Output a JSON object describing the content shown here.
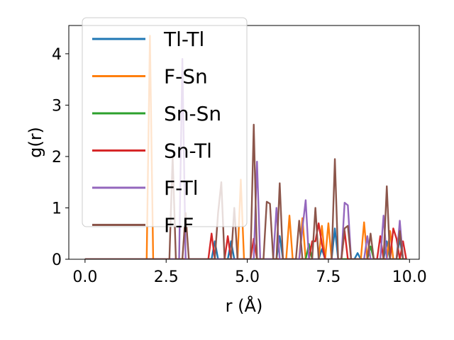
{
  "chart_data": {
    "type": "line",
    "xlabel": "r (Å)",
    "ylabel": "g(r)",
    "xlim": [
      -0.5,
      10.3
    ],
    "ylim": [
      0,
      4.55
    ],
    "xticks": [
      0.0,
      2.5,
      5.0,
      7.5,
      10.0
    ],
    "xtick_labels": [
      "0.0",
      "2.5",
      "5.0",
      "7.5",
      "10.0"
    ],
    "yticks": [
      0,
      1,
      2,
      3,
      4
    ],
    "ytick_labels": [
      "0",
      "1",
      "2",
      "3",
      "4"
    ],
    "legend_position": "upper-left",
    "grid": false,
    "series": [
      {
        "name": "Tl-Tl",
        "color": "#1f77b4",
        "points": [
          [
            0,
            0
          ],
          [
            3.9,
            0
          ],
          [
            4.0,
            0.35
          ],
          [
            4.1,
            0
          ],
          [
            4.4,
            0
          ],
          [
            4.5,
            0.35
          ],
          [
            4.6,
            0
          ],
          [
            5.9,
            0
          ],
          [
            6.0,
            0.45
          ],
          [
            6.1,
            0
          ],
          [
            7.2,
            0
          ],
          [
            7.3,
            0.2
          ],
          [
            7.4,
            0
          ],
          [
            7.6,
            0
          ],
          [
            7.7,
            0.6
          ],
          [
            7.8,
            0
          ],
          [
            8.3,
            0
          ],
          [
            8.4,
            0.12
          ],
          [
            8.5,
            0
          ],
          [
            9.2,
            0
          ],
          [
            9.3,
            0.35
          ],
          [
            9.4,
            0
          ],
          [
            9.6,
            0
          ],
          [
            9.7,
            0.4
          ],
          [
            9.8,
            0
          ],
          [
            9.9,
            0
          ]
        ]
      },
      {
        "name": "F-Sn",
        "color": "#ff7f0e",
        "points": [
          [
            0,
            0
          ],
          [
            1.9,
            0
          ],
          [
            2.0,
            4.35
          ],
          [
            2.1,
            0
          ],
          [
            4.7,
            0
          ],
          [
            4.8,
            1.55
          ],
          [
            4.9,
            0
          ],
          [
            6.2,
            0
          ],
          [
            6.3,
            0.85
          ],
          [
            6.4,
            0
          ],
          [
            6.6,
            0
          ],
          [
            6.7,
            0.8
          ],
          [
            6.8,
            0
          ],
          [
            7.2,
            0
          ],
          [
            7.3,
            0.65
          ],
          [
            7.4,
            0
          ],
          [
            7.5,
            0.7
          ],
          [
            7.6,
            0
          ],
          [
            8.5,
            0
          ],
          [
            8.6,
            0.72
          ],
          [
            8.7,
            0
          ],
          [
            9.3,
            0
          ],
          [
            9.4,
            0.55
          ],
          [
            9.5,
            0
          ],
          [
            9.9,
            0
          ]
        ]
      },
      {
        "name": "Sn-Sn",
        "color": "#2ca02c",
        "points": [
          [
            0,
            0
          ],
          [
            6.8,
            0
          ],
          [
            6.9,
            0.3
          ],
          [
            7.0,
            0
          ],
          [
            8.7,
            0
          ],
          [
            8.8,
            0.25
          ],
          [
            8.9,
            0
          ],
          [
            9.9,
            0
          ]
        ]
      },
      {
        "name": "Sn-Tl",
        "color": "#d62728",
        "points": [
          [
            0,
            0
          ],
          [
            3.8,
            0
          ],
          [
            3.9,
            0.5
          ],
          [
            4.0,
            0
          ],
          [
            4.3,
            0
          ],
          [
            4.4,
            0.45
          ],
          [
            4.5,
            0
          ],
          [
            5.1,
            0
          ],
          [
            5.2,
            0.4
          ],
          [
            5.3,
            0
          ],
          [
            6.9,
            0
          ],
          [
            7.0,
            0.35
          ],
          [
            7.1,
            0.35
          ],
          [
            7.2,
            0.7
          ],
          [
            7.3,
            0.3
          ],
          [
            7.4,
            0
          ],
          [
            7.9,
            0
          ],
          [
            8.0,
            0.55
          ],
          [
            8.1,
            0
          ],
          [
            9.0,
            0
          ],
          [
            9.1,
            0.45
          ],
          [
            9.2,
            0
          ],
          [
            9.4,
            0
          ],
          [
            9.5,
            0.6
          ],
          [
            9.6,
            0.4
          ],
          [
            9.7,
            0
          ],
          [
            9.8,
            0.35
          ],
          [
            9.9,
            0
          ]
        ]
      },
      {
        "name": "F-Tl",
        "color": "#9467bd",
        "points": [
          [
            0,
            0
          ],
          [
            2.9,
            0
          ],
          [
            3.0,
            3.9
          ],
          [
            3.1,
            0
          ],
          [
            5.2,
            0
          ],
          [
            5.3,
            1.9
          ],
          [
            5.4,
            0
          ],
          [
            5.8,
            0
          ],
          [
            5.9,
            1.0
          ],
          [
            6.0,
            0
          ],
          [
            6.6,
            0
          ],
          [
            6.7,
            0.6
          ],
          [
            6.8,
            1.15
          ],
          [
            6.9,
            0
          ],
          [
            7.9,
            0
          ],
          [
            8.0,
            1.1
          ],
          [
            8.1,
            1.05
          ],
          [
            8.2,
            0
          ],
          [
            8.6,
            0
          ],
          [
            8.7,
            0.45
          ],
          [
            8.8,
            0
          ],
          [
            9.1,
            0
          ],
          [
            9.2,
            0.85
          ],
          [
            9.3,
            0
          ],
          [
            9.6,
            0
          ],
          [
            9.7,
            0.75
          ],
          [
            9.8,
            0
          ],
          [
            9.9,
            0
          ]
        ]
      },
      {
        "name": "F-F",
        "color": "#8c564b",
        "points": [
          [
            0,
            0
          ],
          [
            2.6,
            0
          ],
          [
            2.7,
            2.0
          ],
          [
            2.8,
            0
          ],
          [
            3.0,
            0
          ],
          [
            3.1,
            0.9
          ],
          [
            3.2,
            0
          ],
          [
            4.0,
            0
          ],
          [
            4.1,
            0.9
          ],
          [
            4.2,
            1.5
          ],
          [
            4.3,
            0
          ],
          [
            4.5,
            0
          ],
          [
            4.6,
            1.0
          ],
          [
            4.7,
            0
          ],
          [
            5.1,
            0
          ],
          [
            5.2,
            2.62
          ],
          [
            5.3,
            0
          ],
          [
            5.5,
            0
          ],
          [
            5.6,
            1.12
          ],
          [
            5.7,
            1.08
          ],
          [
            5.8,
            0
          ],
          [
            5.9,
            0
          ],
          [
            6.0,
            1.48
          ],
          [
            6.1,
            0
          ],
          [
            6.5,
            0
          ],
          [
            6.6,
            0.75
          ],
          [
            6.7,
            0
          ],
          [
            7.0,
            0
          ],
          [
            7.1,
            1.0
          ],
          [
            7.2,
            0
          ],
          [
            7.6,
            0
          ],
          [
            7.7,
            1.95
          ],
          [
            7.8,
            0
          ],
          [
            7.9,
            0
          ],
          [
            8.0,
            0.6
          ],
          [
            8.1,
            0.65
          ],
          [
            8.2,
            0
          ],
          [
            8.7,
            0
          ],
          [
            8.8,
            0.5
          ],
          [
            8.9,
            0
          ],
          [
            9.2,
            0
          ],
          [
            9.3,
            1.42
          ],
          [
            9.4,
            0
          ],
          [
            9.6,
            0
          ],
          [
            9.7,
            0.55
          ],
          [
            9.8,
            0
          ],
          [
            9.9,
            0
          ]
        ]
      }
    ]
  }
}
